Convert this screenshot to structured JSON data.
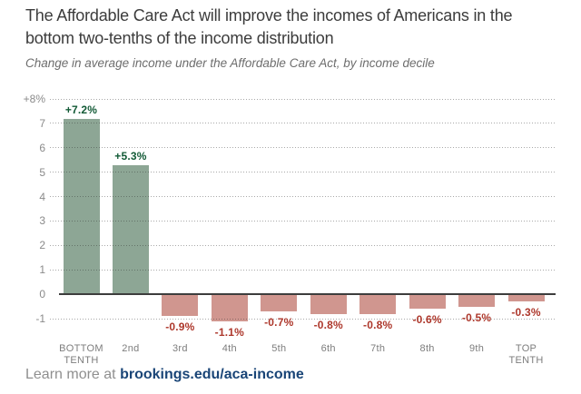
{
  "header": {
    "title": "The Affordable Care Act will improve the incomes of Americans in the bottom two-tenths of the income distribution",
    "subtitle": "Change in average income under the Affordable Care Act, by income decile"
  },
  "chart_data": {
    "type": "bar",
    "title": "The Affordable Care Act will improve the incomes of Americans in the bottom two-tenths of the income distribution",
    "subtitle": "Change in average income under the Affordable Care Act, by income decile",
    "categories": [
      "BOTTOM\nTENTH",
      "2nd",
      "3rd",
      "4th",
      "5th",
      "6th",
      "7th",
      "8th",
      "9th",
      "TOP\nTENTH"
    ],
    "values": [
      7.2,
      5.3,
      -0.9,
      -1.1,
      -0.7,
      -0.8,
      -0.8,
      -0.6,
      -0.5,
      -0.3
    ],
    "bar_labels": [
      "+7.2%",
      "+5.3%",
      "-0.9%",
      "-1.1%",
      "-0.7%",
      "-0.8%",
      "-0.8%",
      "-0.6%",
      "-0.5%",
      "-0.3%"
    ],
    "unit": "percent change in average income",
    "ylim": [
      -1,
      8
    ],
    "yticks": [
      {
        "v": 8,
        "label": "+8%"
      },
      {
        "v": 7,
        "label": "7"
      },
      {
        "v": 6,
        "label": "6"
      },
      {
        "v": 5,
        "label": "5"
      },
      {
        "v": 4,
        "label": "4"
      },
      {
        "v": 3,
        "label": "3"
      },
      {
        "v": 2,
        "label": "2"
      },
      {
        "v": 1,
        "label": "1"
      },
      {
        "v": 0,
        "label": "0"
      },
      {
        "v": -1,
        "label": "-1"
      }
    ],
    "grid": "horizontal-dotted",
    "legend": "none",
    "colors": {
      "positive_bar": "#8da695",
      "negative_bar": "#d0968f",
      "positive_label": "#125a36",
      "negative_label": "#ad372b",
      "axis_line": "#3d3d3d",
      "tick_text": "#8a8a8a"
    }
  },
  "footer": {
    "prefix": "Learn more at ",
    "link": "brookings.edu/aca-income"
  }
}
